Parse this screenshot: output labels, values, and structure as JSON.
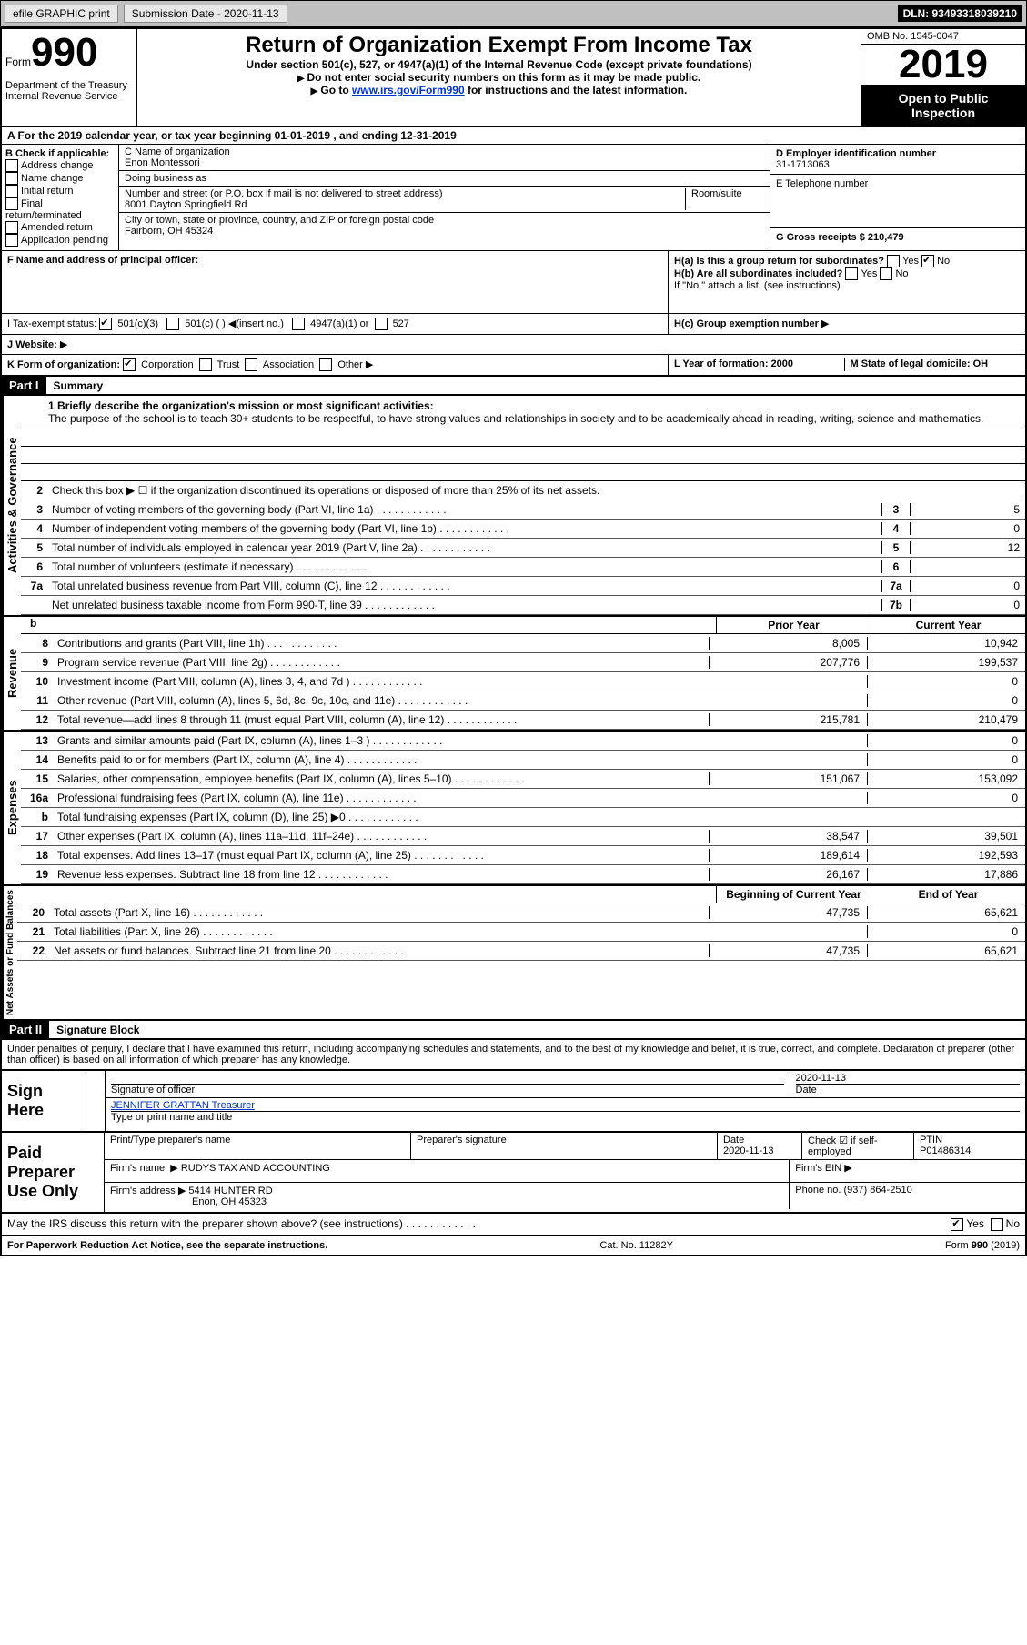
{
  "header_bar": {
    "efile": "efile GRAPHIC print",
    "submission_date_label": "Submission Date - 2020-11-13",
    "dln": "DLN: 93493318039210"
  },
  "form_header": {
    "form_word": "Form",
    "form_number": "990",
    "department": "Department of the Treasury",
    "irs": "Internal Revenue Service",
    "main_title": "Return of Organization Exempt From Income Tax",
    "subtitle": "Under section 501(c), 527, or 4947(a)(1) of the Internal Revenue Code (except private foundations)",
    "instr1": "Do not enter social security numbers on this form as it may be made public.",
    "instr2_prefix": "Go to ",
    "instr2_link": "www.irs.gov/Form990",
    "instr2_suffix": " for instructions and the latest information.",
    "omb": "OMB No. 1545-0047",
    "year": "2019",
    "open_public1": "Open to Public",
    "open_public2": "Inspection"
  },
  "section_a": "A For the 2019 calendar year, or tax year beginning 01-01-2019   , and ending 12-31-2019",
  "section_b": {
    "label": "B Check if applicable:",
    "items": [
      "Address change",
      "Name change",
      "Initial return",
      "Final return/terminated",
      "Amended return",
      "Application pending"
    ]
  },
  "section_c": {
    "name_label": "C Name of organization",
    "name": "Enon Montessori",
    "dba_label": "Doing business as",
    "dba": "",
    "addr_label": "Number and street (or P.O. box if mail is not delivered to street address)",
    "room_label": "Room/suite",
    "addr": "8001 Dayton Springfield Rd",
    "city_label": "City or town, state or province, country, and ZIP or foreign postal code",
    "city": "Fairborn, OH  45324"
  },
  "section_d": {
    "label": "D Employer identification number",
    "value": "31-1713063"
  },
  "section_e": {
    "label": "E Telephone number",
    "value": ""
  },
  "section_g": {
    "label": "G Gross receipts $ 210,479"
  },
  "section_f": {
    "label": "F  Name and address of principal officer:",
    "value": ""
  },
  "section_h": {
    "ha": "H(a)  Is this a group return for subordinates?",
    "ha_yes": "Yes",
    "ha_no": "No",
    "hb": "H(b)  Are all subordinates included?",
    "hb_yes": "Yes",
    "hb_no": "No",
    "hb_note": "If \"No,\" attach a list. (see instructions)",
    "hc": "H(c)  Group exemption number"
  },
  "section_i": {
    "label": "I    Tax-exempt status:",
    "opt1": "501(c)(3)",
    "opt2": "501(c) (  )",
    "opt2_insert": "(insert no.)",
    "opt3": "4947(a)(1) or",
    "opt4": "527"
  },
  "section_j": {
    "label": "J   Website:"
  },
  "section_k": {
    "label": "K Form of organization:",
    "corp": "Corporation",
    "trust": "Trust",
    "assoc": "Association",
    "other": "Other"
  },
  "section_l": {
    "label": "L Year of formation: 2000"
  },
  "section_m": {
    "label": "M State of legal domicile: OH"
  },
  "part1": {
    "header": "Part I",
    "title": "Summary",
    "line1_label": "1  Briefly describe the organization's mission or most significant activities:",
    "line1_text": "The purpose of the school is to teach 30+ students to be respectful, to have strong values and relationships in society and to be academically ahead in reading, writing, science and mathematics.",
    "line2": "Check this box ▶ ☐  if the organization discontinued its operations or disposed of more than 25% of its net assets.",
    "lines_single": [
      {
        "num": "3",
        "desc": "Number of voting members of the governing body (Part VI, line 1a)",
        "box": "3",
        "val": "5"
      },
      {
        "num": "4",
        "desc": "Number of independent voting members of the governing body (Part VI, line 1b)",
        "box": "4",
        "val": "0"
      },
      {
        "num": "5",
        "desc": "Total number of individuals employed in calendar year 2019 (Part V, line 2a)",
        "box": "5",
        "val": "12"
      },
      {
        "num": "6",
        "desc": "Total number of volunteers (estimate if necessary)",
        "box": "6",
        "val": ""
      },
      {
        "num": "7a",
        "desc": "Total unrelated business revenue from Part VIII, column (C), line 12",
        "box": "7a",
        "val": "0"
      },
      {
        "num": "",
        "desc": "Net unrelated business taxable income from Form 990-T, line 39",
        "box": "7b",
        "val": "0"
      }
    ],
    "col_prior": "Prior Year",
    "col_current": "Current Year",
    "revenue": [
      {
        "num": "8",
        "desc": "Contributions and grants (Part VIII, line 1h)",
        "prior": "8,005",
        "current": "10,942"
      },
      {
        "num": "9",
        "desc": "Program service revenue (Part VIII, line 2g)",
        "prior": "207,776",
        "current": "199,537"
      },
      {
        "num": "10",
        "desc": "Investment income (Part VIII, column (A), lines 3, 4, and 7d )",
        "prior": "",
        "current": "0"
      },
      {
        "num": "11",
        "desc": "Other revenue (Part VIII, column (A), lines 5, 6d, 8c, 9c, 10c, and 11e)",
        "prior": "",
        "current": "0"
      },
      {
        "num": "12",
        "desc": "Total revenue—add lines 8 through 11 (must equal Part VIII, column (A), line 12)",
        "prior": "215,781",
        "current": "210,479"
      }
    ],
    "expenses": [
      {
        "num": "13",
        "desc": "Grants and similar amounts paid (Part IX, column (A), lines 1–3 )",
        "prior": "",
        "current": "0"
      },
      {
        "num": "14",
        "desc": "Benefits paid to or for members (Part IX, column (A), line 4)",
        "prior": "",
        "current": "0"
      },
      {
        "num": "15",
        "desc": "Salaries, other compensation, employee benefits (Part IX, column (A), lines 5–10)",
        "prior": "151,067",
        "current": "153,092"
      },
      {
        "num": "16a",
        "desc": "Professional fundraising fees (Part IX, column (A), line 11e)",
        "prior": "",
        "current": "0"
      },
      {
        "num": "b",
        "desc": "Total fundraising expenses (Part IX, column (D), line 25) ▶0",
        "prior": "SHADED",
        "current": "SHADED"
      },
      {
        "num": "17",
        "desc": "Other expenses (Part IX, column (A), lines 11a–11d, 11f–24e)",
        "prior": "38,547",
        "current": "39,501"
      },
      {
        "num": "18",
        "desc": "Total expenses. Add lines 13–17 (must equal Part IX, column (A), line 25)",
        "prior": "189,614",
        "current": "192,593"
      },
      {
        "num": "19",
        "desc": "Revenue less expenses. Subtract line 18 from line 12",
        "prior": "26,167",
        "current": "17,886"
      }
    ],
    "col_begin": "Beginning of Current Year",
    "col_end": "End of Year",
    "netassets": [
      {
        "num": "20",
        "desc": "Total assets (Part X, line 16)",
        "prior": "47,735",
        "current": "65,621"
      },
      {
        "num": "21",
        "desc": "Total liabilities (Part X, line 26)",
        "prior": "",
        "current": "0"
      },
      {
        "num": "22",
        "desc": "Net assets or fund balances. Subtract line 21 from line 20",
        "prior": "47,735",
        "current": "65,621"
      }
    ],
    "vlabels": {
      "gov": "Activities & Governance",
      "rev": "Revenue",
      "exp": "Expenses",
      "net": "Net Assets or Fund Balances"
    }
  },
  "part2": {
    "header": "Part II",
    "title": "Signature Block",
    "declaration": "Under penalties of perjury, I declare that I have examined this return, including accompanying schedules and statements, and to the best of my knowledge and belief, it is true, correct, and complete. Declaration of preparer (other than officer) is based on all information of which preparer has any knowledge."
  },
  "sign_here": {
    "label": "Sign Here",
    "sig_officer": "Signature of officer",
    "date_label": "Date",
    "date": "2020-11-13",
    "name_title": "JENNIFER GRATTAN  Treasurer",
    "name_title_label": "Type or print name and title"
  },
  "paid_preparer": {
    "label": "Paid Preparer Use Only",
    "print_name_label": "Print/Type preparer's name",
    "sig_label": "Preparer's signature",
    "date_label": "Date",
    "date": "2020-11-13",
    "check_label": "Check ☑ if self-employed",
    "ptin_label": "PTIN",
    "ptin": "P01486314",
    "firm_name_label": "Firm's name",
    "firm_name": "RUDYS TAX AND ACCOUNTING",
    "firm_ein_label": "Firm's EIN",
    "firm_addr_label": "Firm's address",
    "firm_addr1": "5414 HUNTER RD",
    "firm_addr2": "Enon, OH  45323",
    "phone_label": "Phone no. (937) 864-2510"
  },
  "bottom": {
    "discuss": "May the IRS discuss this return with the preparer shown above? (see instructions)",
    "yes": "Yes",
    "no": "No",
    "paperwork": "For Paperwork Reduction Act Notice, see the separate instructions.",
    "catno": "Cat. No. 11282Y",
    "formno": "Form 990 (2019)"
  }
}
